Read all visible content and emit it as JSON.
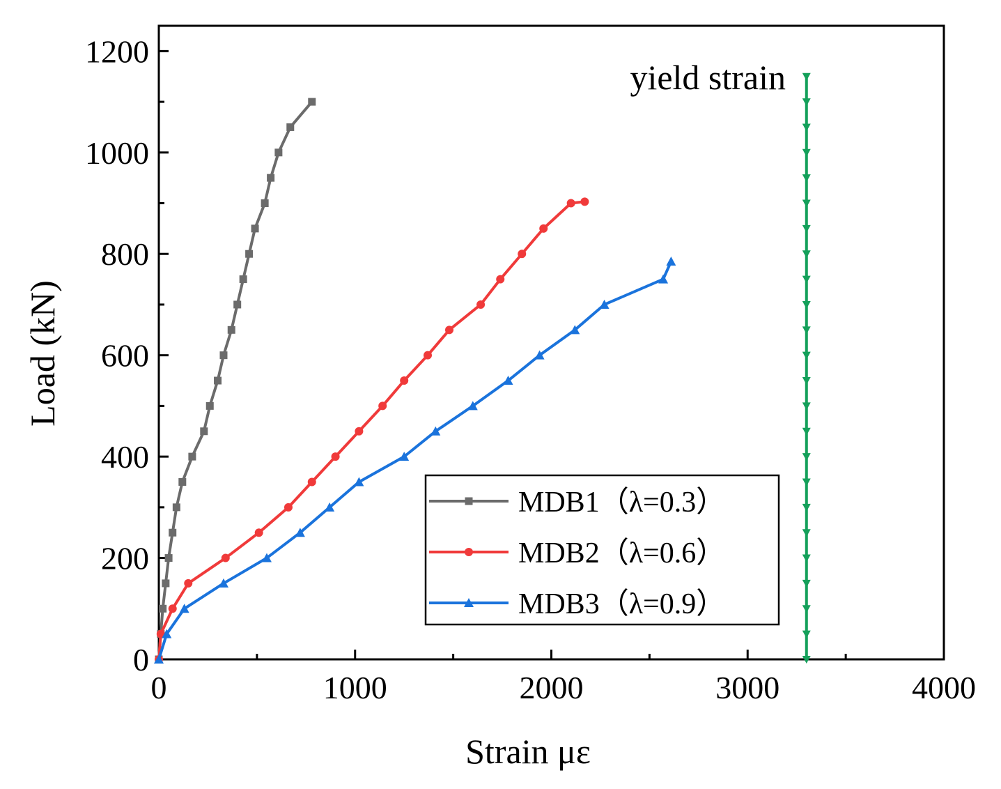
{
  "chart_data": {
    "type": "line",
    "title": "",
    "xlabel": "Strain  με",
    "ylabel": "Load (kN)",
    "xlim": [
      0,
      4000
    ],
    "ylim": [
      0,
      1250
    ],
    "xticks": [
      0,
      1000,
      2000,
      3000,
      4000
    ],
    "yticks": [
      0,
      200,
      400,
      600,
      800,
      1000,
      1200
    ],
    "x_minor_ticks": [
      500,
      1500,
      2500,
      3500
    ],
    "y_minor_ticks": [
      100,
      300,
      500,
      700,
      900,
      1100
    ],
    "grid": false,
    "legend_position": "bottom-center",
    "annotation": "yield strain",
    "series": [
      {
        "name": "MDB1（λ=0.3）",
        "color": "#6b6b6b",
        "marker": "square",
        "points": [
          [
            0,
            0
          ],
          [
            10,
            50
          ],
          [
            20,
            100
          ],
          [
            35,
            150
          ],
          [
            50,
            200
          ],
          [
            70,
            250
          ],
          [
            90,
            300
          ],
          [
            120,
            350
          ],
          [
            170,
            400
          ],
          [
            230,
            450
          ],
          [
            260,
            500
          ],
          [
            300,
            550
          ],
          [
            330,
            600
          ],
          [
            370,
            650
          ],
          [
            400,
            700
          ],
          [
            430,
            750
          ],
          [
            460,
            800
          ],
          [
            490,
            850
          ],
          [
            540,
            900
          ],
          [
            570,
            950
          ],
          [
            610,
            1000
          ],
          [
            670,
            1050
          ],
          [
            780,
            1100
          ]
        ]
      },
      {
        "name": "MDB2（λ=0.6）",
        "color": "#f03a3a",
        "marker": "circle",
        "points": [
          [
            0,
            0
          ],
          [
            10,
            50
          ],
          [
            70,
            100
          ],
          [
            150,
            150
          ],
          [
            340,
            200
          ],
          [
            510,
            250
          ],
          [
            660,
            300
          ],
          [
            780,
            350
          ],
          [
            900,
            400
          ],
          [
            1020,
            450
          ],
          [
            1140,
            500
          ],
          [
            1250,
            550
          ],
          [
            1370,
            600
          ],
          [
            1480,
            650
          ],
          [
            1640,
            700
          ],
          [
            1740,
            750
          ],
          [
            1850,
            800
          ],
          [
            1960,
            850
          ],
          [
            2100,
            900
          ],
          [
            2170,
            903
          ]
        ]
      },
      {
        "name": "MDB3（λ=0.9）",
        "color": "#1a73dc",
        "marker": "triangle",
        "points": [
          [
            0,
            0
          ],
          [
            40,
            50
          ],
          [
            130,
            100
          ],
          [
            330,
            150
          ],
          [
            550,
            200
          ],
          [
            720,
            250
          ],
          [
            870,
            300
          ],
          [
            1020,
            350
          ],
          [
            1250,
            400
          ],
          [
            1410,
            450
          ],
          [
            1600,
            500
          ],
          [
            1780,
            550
          ],
          [
            1940,
            600
          ],
          [
            2120,
            650
          ],
          [
            2270,
            700
          ],
          [
            2570,
            750
          ],
          [
            2610,
            785
          ]
        ]
      },
      {
        "name": "yield strain",
        "color": "#14a05a",
        "marker": "triangle-down",
        "points": [
          [
            3300,
            0
          ],
          [
            3300,
            50
          ],
          [
            3300,
            100
          ],
          [
            3300,
            150
          ],
          [
            3300,
            200
          ],
          [
            3300,
            250
          ],
          [
            3300,
            300
          ],
          [
            3300,
            350
          ],
          [
            3300,
            400
          ],
          [
            3300,
            450
          ],
          [
            3300,
            500
          ],
          [
            3300,
            550
          ],
          [
            3300,
            600
          ],
          [
            3300,
            650
          ],
          [
            3300,
            700
          ],
          [
            3300,
            750
          ],
          [
            3300,
            800
          ],
          [
            3300,
            850
          ],
          [
            3300,
            900
          ],
          [
            3300,
            950
          ],
          [
            3300,
            1000
          ],
          [
            3300,
            1050
          ],
          [
            3300,
            1100
          ],
          [
            3300,
            1150
          ]
        ]
      }
    ]
  }
}
